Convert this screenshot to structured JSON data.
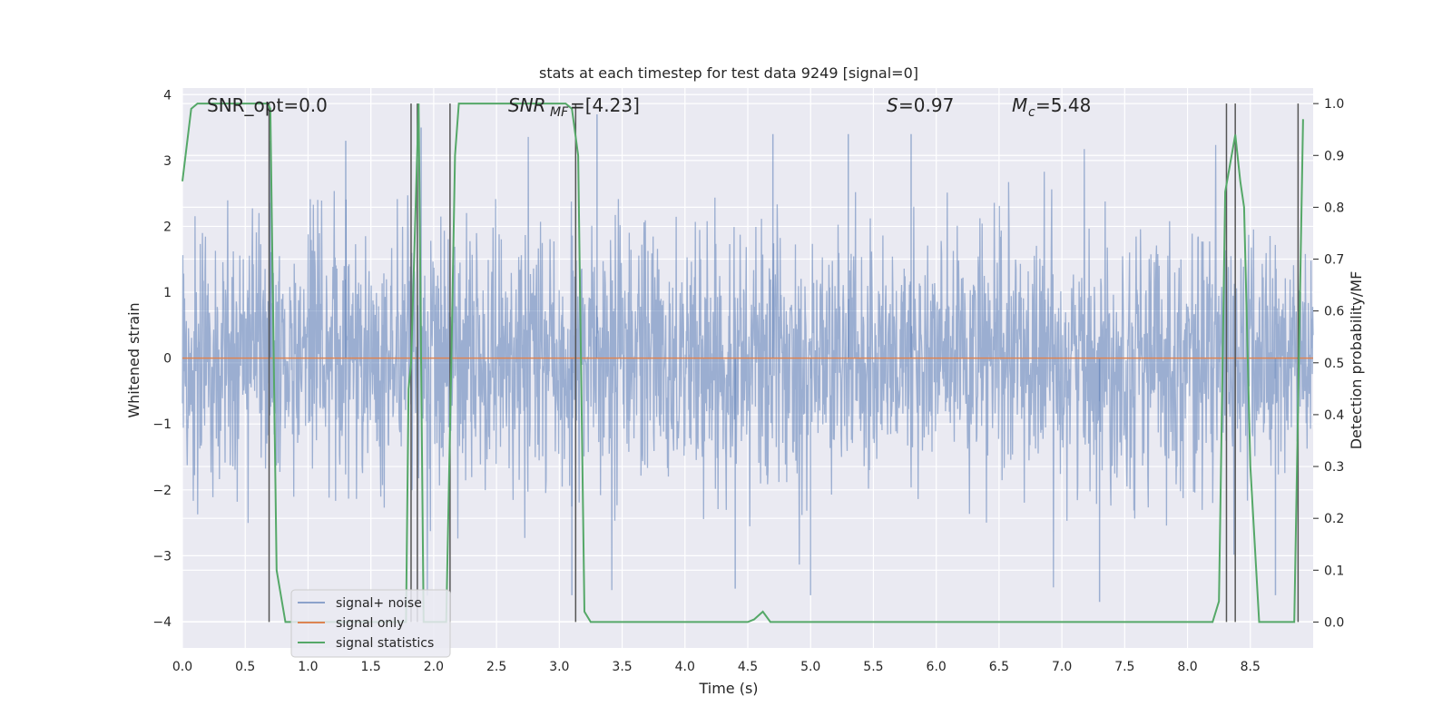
{
  "chart_data": {
    "type": "line",
    "title": "stats at each timestep for test data 9249 [signal=0]",
    "xlabel": "Time (s)",
    "ylabel": "Whitened strain",
    "ylabel_right": "Detection probability/MF",
    "xlim": [
      0.0,
      9.0
    ],
    "ylim": [
      -4.4,
      4.1
    ],
    "ylim_right": [
      -0.05,
      1.03
    ],
    "x_ticks": [
      0.0,
      0.5,
      1.0,
      1.5,
      2.0,
      2.5,
      3.0,
      3.5,
      4.0,
      4.5,
      5.0,
      5.5,
      6.0,
      6.5,
      7.0,
      7.5,
      8.0,
      8.5
    ],
    "x_tick_labels": [
      "0.0",
      "0.5",
      "1.0",
      "1.5",
      "2.0",
      "2.5",
      "3.0",
      "3.5",
      "4.0",
      "4.5",
      "5.0",
      "5.5",
      "6.0",
      "6.5",
      "7.0",
      "7.5",
      "8.0",
      "8.5"
    ],
    "y_ticks": [
      4,
      3,
      2,
      1,
      0,
      -1,
      -2,
      -3,
      -4
    ],
    "y_tick_labels": [
      "4",
      "3",
      "2",
      "1",
      "0",
      "−1",
      "−2",
      "−3",
      "−4"
    ],
    "y_right_ticks": [
      1.0,
      0.9,
      0.8,
      0.7,
      0.6,
      0.5,
      0.4,
      0.3,
      0.2,
      0.1,
      0.0
    ],
    "y_right_tick_labels": [
      "1.0",
      "0.9",
      "0.8",
      "0.7",
      "0.6",
      "0.5",
      "0.4",
      "0.3",
      "0.2",
      "0.1",
      "0.0"
    ],
    "grid": true,
    "background": "#eaeaf2",
    "legend_placement": "lower-left",
    "annotations": {
      "snr_opt": "SNR_opt=0.0",
      "snr_mf": "=[4.23]",
      "snr_mf_sym": "SNR",
      "snr_mf_sub": "MF",
      "s_sym": "S",
      "s_val": "=0.97",
      "mc_sym": "M",
      "mc_sub": "c",
      "mc_val": "=5.48"
    },
    "series": [
      {
        "name": "signal+ noise",
        "color": "#4c72b0",
        "alpha": 0.5,
        "axis": "left",
        "summary": "dense whitened noise spanning roughly −4 to +3.8 across 0 to 9 s",
        "envelope_upper": [
          2.3,
          2.5,
          2.6,
          2.7,
          2.5,
          2.6,
          2.4,
          2.8,
          2.6,
          2.5,
          2.7,
          2.9,
          2.6,
          2.5,
          2.7,
          2.6,
          2.5,
          2.8
        ],
        "envelope_lower": [
          -2.2,
          -2.6,
          -2.5,
          -2.4,
          -2.7,
          -2.5,
          -2.6,
          -2.8,
          -2.7,
          -2.9,
          -2.6,
          -2.5,
          -2.6,
          -2.7,
          -2.6,
          -2.6,
          -2.8,
          -2.6
        ],
        "peaks": [
          [
            0.7,
            3.3
          ],
          [
            1.3,
            3.3
          ],
          [
            1.9,
            3.5
          ],
          [
            3.3,
            3.7
          ],
          [
            4.7,
            3.4
          ],
          [
            5.3,
            3.4
          ],
          [
            5.8,
            3.4
          ],
          [
            3.1,
            -3.6
          ],
          [
            4.4,
            -3.5
          ],
          [
            5.0,
            -3.6
          ],
          [
            7.3,
            -3.7
          ],
          [
            8.7,
            -3.6
          ]
        ]
      },
      {
        "name": "signal only",
        "color": "#dd8452",
        "axis": "left",
        "x": [
          0.0,
          9.0
        ],
        "y": [
          0.0,
          0.0
        ]
      },
      {
        "name": "signal statistics",
        "color": "#55a868",
        "axis": "right",
        "x": [
          0.0,
          0.07,
          0.12,
          0.2,
          0.3,
          0.6,
          0.68,
          0.7,
          0.75,
          0.82,
          1.0,
          1.78,
          1.8,
          1.82,
          1.88,
          1.92,
          1.96,
          2.1,
          2.14,
          2.17,
          2.2,
          2.5,
          3.05,
          3.1,
          3.15,
          3.2,
          3.25,
          4.5,
          4.55,
          4.62,
          4.68,
          5.0,
          7.0,
          8.2,
          8.25,
          8.3,
          8.38,
          8.42,
          8.45,
          8.5,
          8.57,
          8.6,
          8.75,
          8.85,
          8.92
        ],
        "y": [
          0.85,
          0.99,
          1.0,
          1.0,
          1.0,
          1.0,
          1.0,
          0.99,
          0.1,
          0.0,
          0.0,
          0.0,
          0.45,
          0.5,
          1.0,
          0.0,
          0.0,
          0.0,
          0.5,
          0.9,
          1.0,
          1.0,
          1.0,
          0.99,
          0.9,
          0.02,
          0.0,
          0.0,
          0.005,
          0.02,
          0.0,
          0.0,
          0.0,
          0.0,
          0.04,
          0.83,
          0.94,
          0.85,
          0.8,
          0.3,
          0.0,
          0.0,
          0.0,
          0.0,
          0.97
        ]
      }
    ],
    "vertical_lines": [
      0.69,
      1.82,
      1.87,
      2.13,
      3.13,
      8.31,
      8.38,
      8.88
    ]
  }
}
